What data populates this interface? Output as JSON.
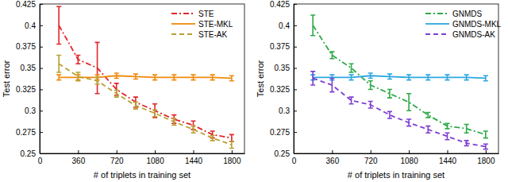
{
  "chart_data": [
    {
      "type": "line",
      "x": [
        180,
        360,
        540,
        720,
        900,
        1080,
        1260,
        1440,
        1620,
        1800
      ],
      "series": [
        {
          "name": "STE",
          "color": "#e0262b",
          "line_style": "dash-dot",
          "values": [
            0.4,
            0.36,
            0.35,
            0.325,
            0.31,
            0.3,
            0.29,
            0.283,
            0.272,
            0.268
          ],
          "errors": [
            0.022,
            0.005,
            0.03,
            0.007,
            0.006,
            0.008,
            0.005,
            0.005,
            0.004,
            0.004
          ]
        },
        {
          "name": "STE-MKL",
          "color": "#f08a0e",
          "line_style": "solid",
          "values": [
            0.339,
            0.339,
            0.339,
            0.341,
            0.34,
            0.339,
            0.339,
            0.339,
            0.339,
            0.338
          ],
          "errors": [
            0.003,
            0.003,
            0.003,
            0.003,
            0.003,
            0.003,
            0.003,
            0.003,
            0.003,
            0.003
          ]
        },
        {
          "name": "STE-AK",
          "color": "#b8a030",
          "line_style": "dashed",
          "values": [
            0.355,
            0.34,
            0.335,
            0.32,
            0.306,
            0.297,
            0.287,
            0.278,
            0.268,
            0.26
          ],
          "errors": [
            0.01,
            0.005,
            0.004,
            0.004,
            0.004,
            0.004,
            0.004,
            0.004,
            0.003,
            0.004
          ]
        }
      ],
      "xlim": [
        0,
        1920
      ],
      "ylim": [
        0.25,
        0.425
      ],
      "xticks": [
        0,
        360,
        720,
        1080,
        1440,
        1800
      ],
      "yticks": [
        0.25,
        0.275,
        0.3,
        0.325,
        0.35,
        0.375,
        0.4,
        0.425
      ],
      "x_label": "# of triplets in training set",
      "y_label": "Test error",
      "legend": "upper right",
      "grid": false
    },
    {
      "type": "line",
      "x": [
        180,
        360,
        540,
        720,
        900,
        1080,
        1260,
        1440,
        1620,
        1800
      ],
      "series": [
        {
          "name": "GNMDS",
          "color": "#2eaa48",
          "line_style": "dash-dot",
          "values": [
            0.4,
            0.365,
            0.35,
            0.33,
            0.32,
            0.31,
            0.295,
            0.282,
            0.279,
            0.272
          ],
          "errors": [
            0.012,
            0.004,
            0.005,
            0.005,
            0.005,
            0.01,
            0.003,
            0.003,
            0.005,
            0.004
          ]
        },
        {
          "name": "GNMDS-MKL",
          "color": "#2da7e0",
          "line_style": "solid",
          "values": [
            0.339,
            0.339,
            0.339,
            0.341,
            0.34,
            0.339,
            0.339,
            0.339,
            0.339,
            0.338
          ],
          "errors": [
            0.003,
            0.003,
            0.003,
            0.003,
            0.003,
            0.003,
            0.003,
            0.003,
            0.003,
            0.003
          ]
        },
        {
          "name": "GNMDS-AK",
          "color": "#7e3fd0",
          "line_style": "dashed",
          "values": [
            0.338,
            0.33,
            0.312,
            0.307,
            0.295,
            0.286,
            0.278,
            0.27,
            0.262,
            0.258
          ],
          "errors": [
            0.008,
            0.008,
            0.004,
            0.004,
            0.004,
            0.004,
            0.004,
            0.004,
            0.003,
            0.003
          ]
        }
      ],
      "xlim": [
        0,
        1920
      ],
      "ylim": [
        0.25,
        0.425
      ],
      "xticks": [
        0,
        360,
        720,
        1080,
        1440,
        1800
      ],
      "yticks": [
        0.25,
        0.275,
        0.3,
        0.325,
        0.35,
        0.375,
        0.4,
        0.425
      ],
      "x_label": "# of triplets in training set",
      "y_label": "Test error",
      "legend": "upper right",
      "grid": false
    }
  ]
}
